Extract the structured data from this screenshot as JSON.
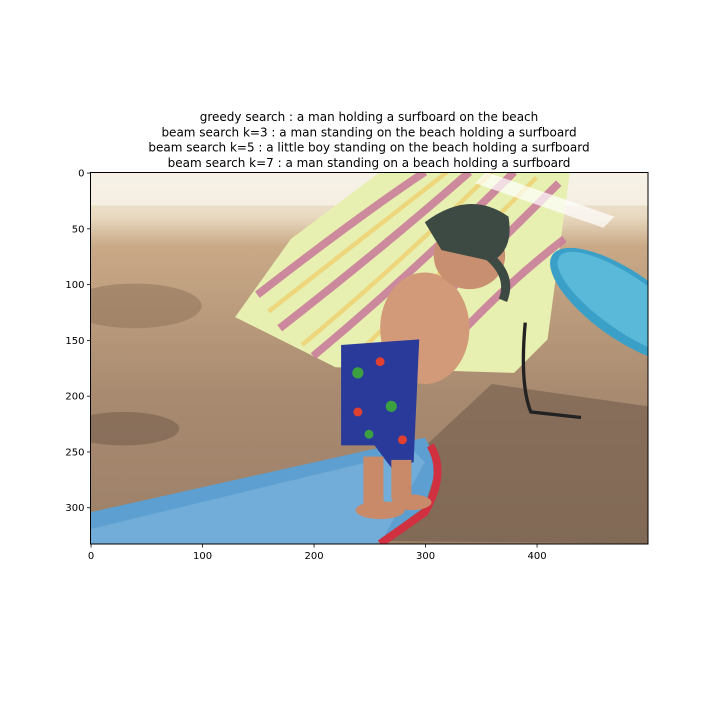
{
  "chart_data": {
    "type": "image",
    "title": [
      "greedy search : a man holding a surfboard on the beach",
      "beam search k=3 :  a man standing on the beach holding a surfboard",
      "beam search k=5 :  a little boy standing on the beach holding a surfboard",
      "beam search k=7 :  a man standing on a beach holding a surfboard"
    ],
    "xlim": [
      -0.5,
      499.5
    ],
    "ylim": [
      332.5,
      -0.5
    ],
    "xticks": [
      0,
      100,
      200,
      300,
      400
    ],
    "yticks": [
      0,
      50,
      100,
      150,
      200,
      250,
      300
    ]
  }
}
